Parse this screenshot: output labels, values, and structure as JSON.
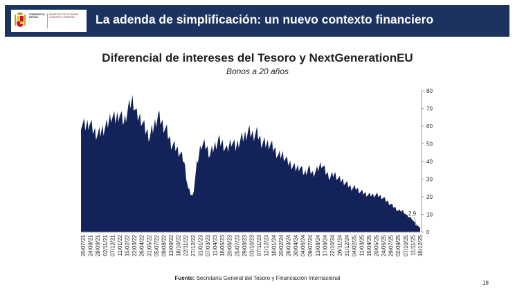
{
  "header": {
    "title": "La adenda de simplificación: un nuevo contexto financiero",
    "logo_gobierno": "GOBIERNO DE ESPAÑA",
    "logo_ministerio": "MINISTERIO DE ECONOMÍA, COMERCIO Y EMPRESA"
  },
  "colors": {
    "header_bg": "#1c3360",
    "area_fill": "#13235a"
  },
  "source": {
    "label": "Fuente:",
    "text": " Secretaría General del Tesoro y Financiación Internacional"
  },
  "page_number": "18",
  "chart_data": {
    "type": "area",
    "title": "Diferencial de intereses del Tesoro y NextGenerationEU",
    "subtitle": "Bonos a 20 años",
    "ylim": [
      0,
      80
    ],
    "yticks": [
      "0",
      "10",
      "20",
      "30",
      "40",
      "50",
      "60",
      "70",
      "80"
    ],
    "y_axis_position": "right",
    "x_tick_labels": [
      "20/07/21",
      "24/08/21",
      "28/09/21",
      "02/11/21",
      "07/12/21",
      "11/01/22",
      "15/02/22",
      "22/03/22",
      "26/04/22",
      "31/05/22",
      "05/07/22",
      "09/08/22",
      "13/09/22",
      "18/10/22",
      "22/11/22",
      "27/12/22",
      "31/01/23",
      "07/03/23",
      "11/04/23",
      "16/05/23",
      "20/06/23",
      "25/07/23",
      "29/08/23",
      "03/10/23",
      "07/11/23",
      "12/12/23",
      "16/01/24",
      "20/02/24",
      "26/03/24",
      "30/04/24",
      "04/06/24",
      "09/07/24",
      "13/08/24",
      "17/09/24",
      "22/10/24",
      "26/11/24",
      "31/12/24",
      "04/02/25",
      "11/03/25",
      "15/04/25",
      "20/05/25",
      "24/06/25",
      "29/07/25",
      "02/09/25",
      "07/10/25",
      "11/11/25",
      "16/12/25"
    ],
    "values": [
      62,
      60,
      62,
      57,
      55,
      58,
      60,
      66,
      64,
      67,
      62,
      70,
      75,
      66,
      64,
      58,
      54,
      60,
      66,
      61,
      57,
      50,
      48,
      45,
      40,
      24,
      20,
      38,
      50,
      49,
      44,
      48,
      52,
      50,
      46,
      52,
      48,
      52,
      54,
      57,
      55,
      56,
      51,
      50,
      50,
      47,
      43,
      44,
      40,
      38,
      36,
      37,
      33,
      36,
      33,
      35,
      39,
      34,
      31,
      33,
      30,
      29,
      27,
      25,
      25,
      23,
      22,
      21,
      21,
      21,
      20,
      18,
      16,
      14,
      12,
      12,
      9,
      8,
      4,
      2.9
    ],
    "annotations": [
      {
        "text": "2,9",
        "value": 2.9
      }
    ]
  }
}
